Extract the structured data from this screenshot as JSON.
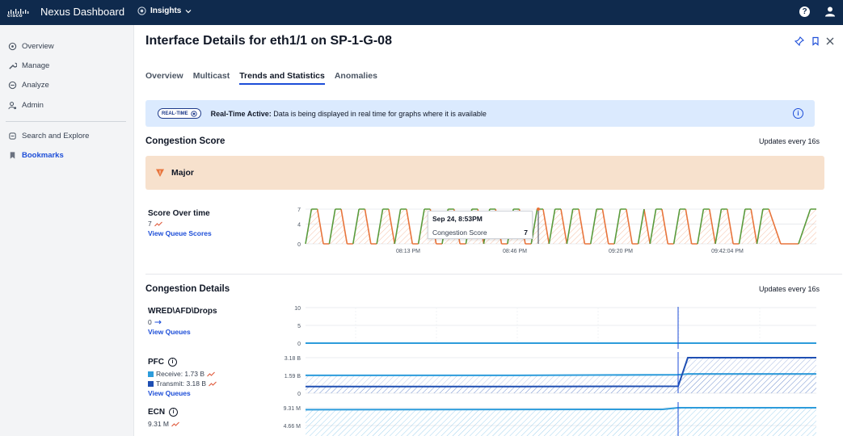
{
  "header": {
    "brand_text": "cisco",
    "app_title": "Nexus Dashboard",
    "context": "Insights",
    "help_symbol": "?"
  },
  "sidebar": {
    "items": [
      {
        "label": "Overview",
        "icon": "overview-icon"
      },
      {
        "label": "Manage",
        "icon": "wrench-icon"
      },
      {
        "label": "Analyze",
        "icon": "analyze-icon"
      },
      {
        "label": "Admin",
        "icon": "admin-icon"
      }
    ],
    "secondary": [
      {
        "label": "Search and Explore",
        "icon": "search-explore-icon"
      },
      {
        "label": "Bookmarks",
        "icon": "bookmark-icon"
      }
    ]
  },
  "page": {
    "title": "Interface Details for eth1/1 on SP-1-G-08",
    "tabs": [
      "Overview",
      "Multicast",
      "Trends and Statistics",
      "Anomalies"
    ],
    "active_tab": "Trends and Statistics"
  },
  "banner": {
    "badge": "REAL-TIME",
    "bold_text": "Real-Time Active:",
    "text": "Data is being displayed in real time for graphs where it is available",
    "info_symbol": "i"
  },
  "congestion_score": {
    "title": "Congestion Score",
    "updates": "Updates every 16s",
    "severity": "Major",
    "severity_symbol": "!",
    "score_title": "Score Over time",
    "score_value": "7",
    "link": "View Queue Scores",
    "tooltip": {
      "date": "Sep 24, 8:53PM",
      "label": "Congestion Score",
      "value": "7"
    }
  },
  "congestion_details": {
    "title": "Congestion Details",
    "updates": "Updates every 16s",
    "wred": {
      "title": "WRED\\AFD\\Drops",
      "value": "0",
      "link": "View Queues"
    },
    "pfc": {
      "title": "PFC",
      "receive": "Receive: 1.73 B",
      "transmit": "Transmit: 3.18 B",
      "link": "View Queues",
      "info_symbol": "i"
    },
    "ecn": {
      "title": "ECN",
      "value": "9.31 M",
      "info_symbol": "i"
    }
  },
  "colors": {
    "topbar": "#0f2a4d",
    "accent": "#1d4ed8",
    "score_line": "#5a9b3c",
    "score_fill": "#e8743b",
    "receive": "#2d9cdb",
    "transmit": "#1f4fb3",
    "severity_bg": "#f7e1cd"
  },
  "chart_data": [
    {
      "type": "line",
      "title": "Score Over time",
      "ylim": [
        0,
        7
      ],
      "y_ticks": [
        "0",
        "4",
        "7"
      ],
      "x_ticks": [
        "08:13 PM",
        "08:46 PM",
        "09:20 PM",
        "09:42:04 PM"
      ],
      "series": [
        {
          "values": [
            0,
            7,
            7,
            0,
            0,
            7,
            7,
            0,
            0,
            7,
            7,
            0,
            0,
            7,
            7,
            0,
            7,
            7,
            0,
            0,
            7,
            7,
            0,
            0,
            7,
            7,
            0,
            0,
            7,
            7,
            0,
            7,
            7,
            0,
            0,
            7,
            7,
            0,
            0,
            7,
            7,
            0,
            7,
            7,
            0,
            7,
            7,
            0,
            0,
            7,
            7,
            0,
            0,
            7,
            7,
            0,
            0,
            7,
            0,
            7,
            7,
            0,
            0,
            7,
            7,
            0,
            0,
            7,
            7,
            0,
            7,
            7,
            0,
            0,
            7,
            7,
            0,
            7,
            7,
            3.5,
            0,
            0,
            0,
            0,
            3.5,
            7,
            7
          ]
        }
      ]
    },
    {
      "type": "line",
      "title": "WRED\\AFD\\Drops",
      "ylim": [
        0,
        10
      ],
      "y_ticks": [
        "0",
        "5",
        "10"
      ],
      "series": [
        {
          "values": [
            0,
            0
          ]
        }
      ]
    },
    {
      "type": "area",
      "title": "PFC",
      "y_ticks": [
        "0",
        "1.59 B",
        "3.18 B"
      ],
      "series": [
        {
          "name": "Receive",
          "values": [
            1.6,
            1.6,
            1.65,
            1.73,
            1.73
          ]
        },
        {
          "name": "Transmit",
          "values": [
            0.6,
            0.6,
            0.62,
            3.18,
            3.18
          ]
        }
      ]
    },
    {
      "type": "area",
      "title": "ECN",
      "y_ticks": [
        "4.66 M",
        "9.31 M"
      ],
      "series": [
        {
          "values": [
            8.8,
            8.85,
            8.9,
            9.31,
            9.31
          ]
        }
      ]
    }
  ]
}
